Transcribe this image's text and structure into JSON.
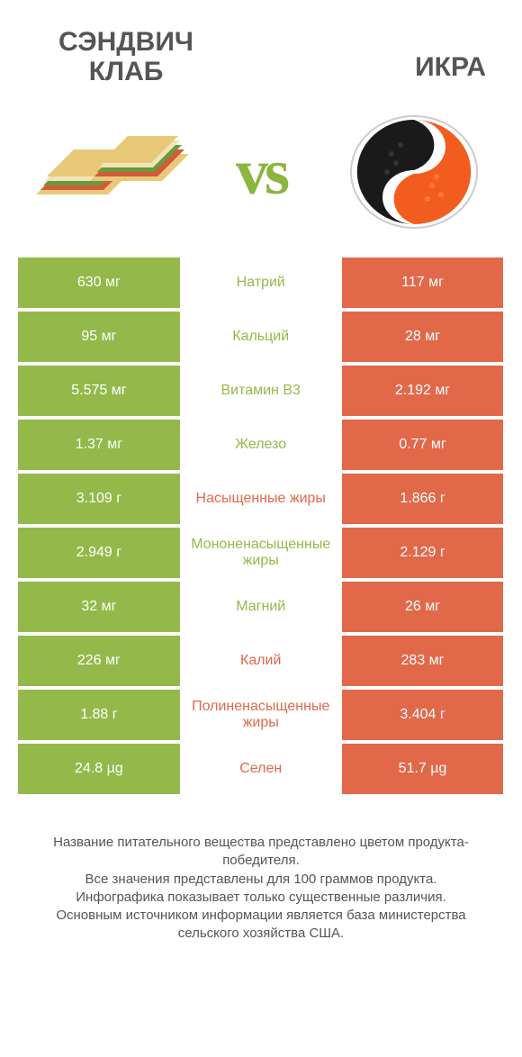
{
  "colors": {
    "green": "#94b94a",
    "orange": "#e2684a",
    "vs": "#8bb63f",
    "titleText": "#555555",
    "white": "#ffffff"
  },
  "header": {
    "leftTitle": "СЭНДВИЧ КЛАБ",
    "rightTitle": "ИКРА",
    "vs": "vs"
  },
  "rows": [
    {
      "nutrient": "Натрий",
      "left": "630 мг",
      "right": "117 мг",
      "winner": "left"
    },
    {
      "nutrient": "Кальций",
      "left": "95 мг",
      "right": "28 мг",
      "winner": "left"
    },
    {
      "nutrient": "Витамин B3",
      "left": "5.575 мг",
      "right": "2.192 мг",
      "winner": "left"
    },
    {
      "nutrient": "Железо",
      "left": "1.37 мг",
      "right": "0.77 мг",
      "winner": "left"
    },
    {
      "nutrient": "Насыщенные жиры",
      "left": "3.109 г",
      "right": "1.866 г",
      "winner": "right"
    },
    {
      "nutrient": "Мононенасыщенные жиры",
      "left": "2.949 г",
      "right": "2.129 г",
      "winner": "left"
    },
    {
      "nutrient": "Магний",
      "left": "32 мг",
      "right": "26 мг",
      "winner": "left"
    },
    {
      "nutrient": "Калий",
      "left": "226 мг",
      "right": "283 мг",
      "winner": "right"
    },
    {
      "nutrient": "Полиненасыщенные жиры",
      "left": "1.88 г",
      "right": "3.404 г",
      "winner": "right"
    },
    {
      "nutrient": "Селен",
      "left": "24.8 µg",
      "right": "51.7 µg",
      "winner": "right"
    }
  ],
  "footer": {
    "line1": "Название питательного вещества представлено цветом продукта-победителя.",
    "line2": "Все значения представлены для 100 граммов продукта.",
    "line3": "Инфографика показывает только существенные различия.",
    "line4": "Основным источником информации является база министерства сельского хозяйства США."
  }
}
